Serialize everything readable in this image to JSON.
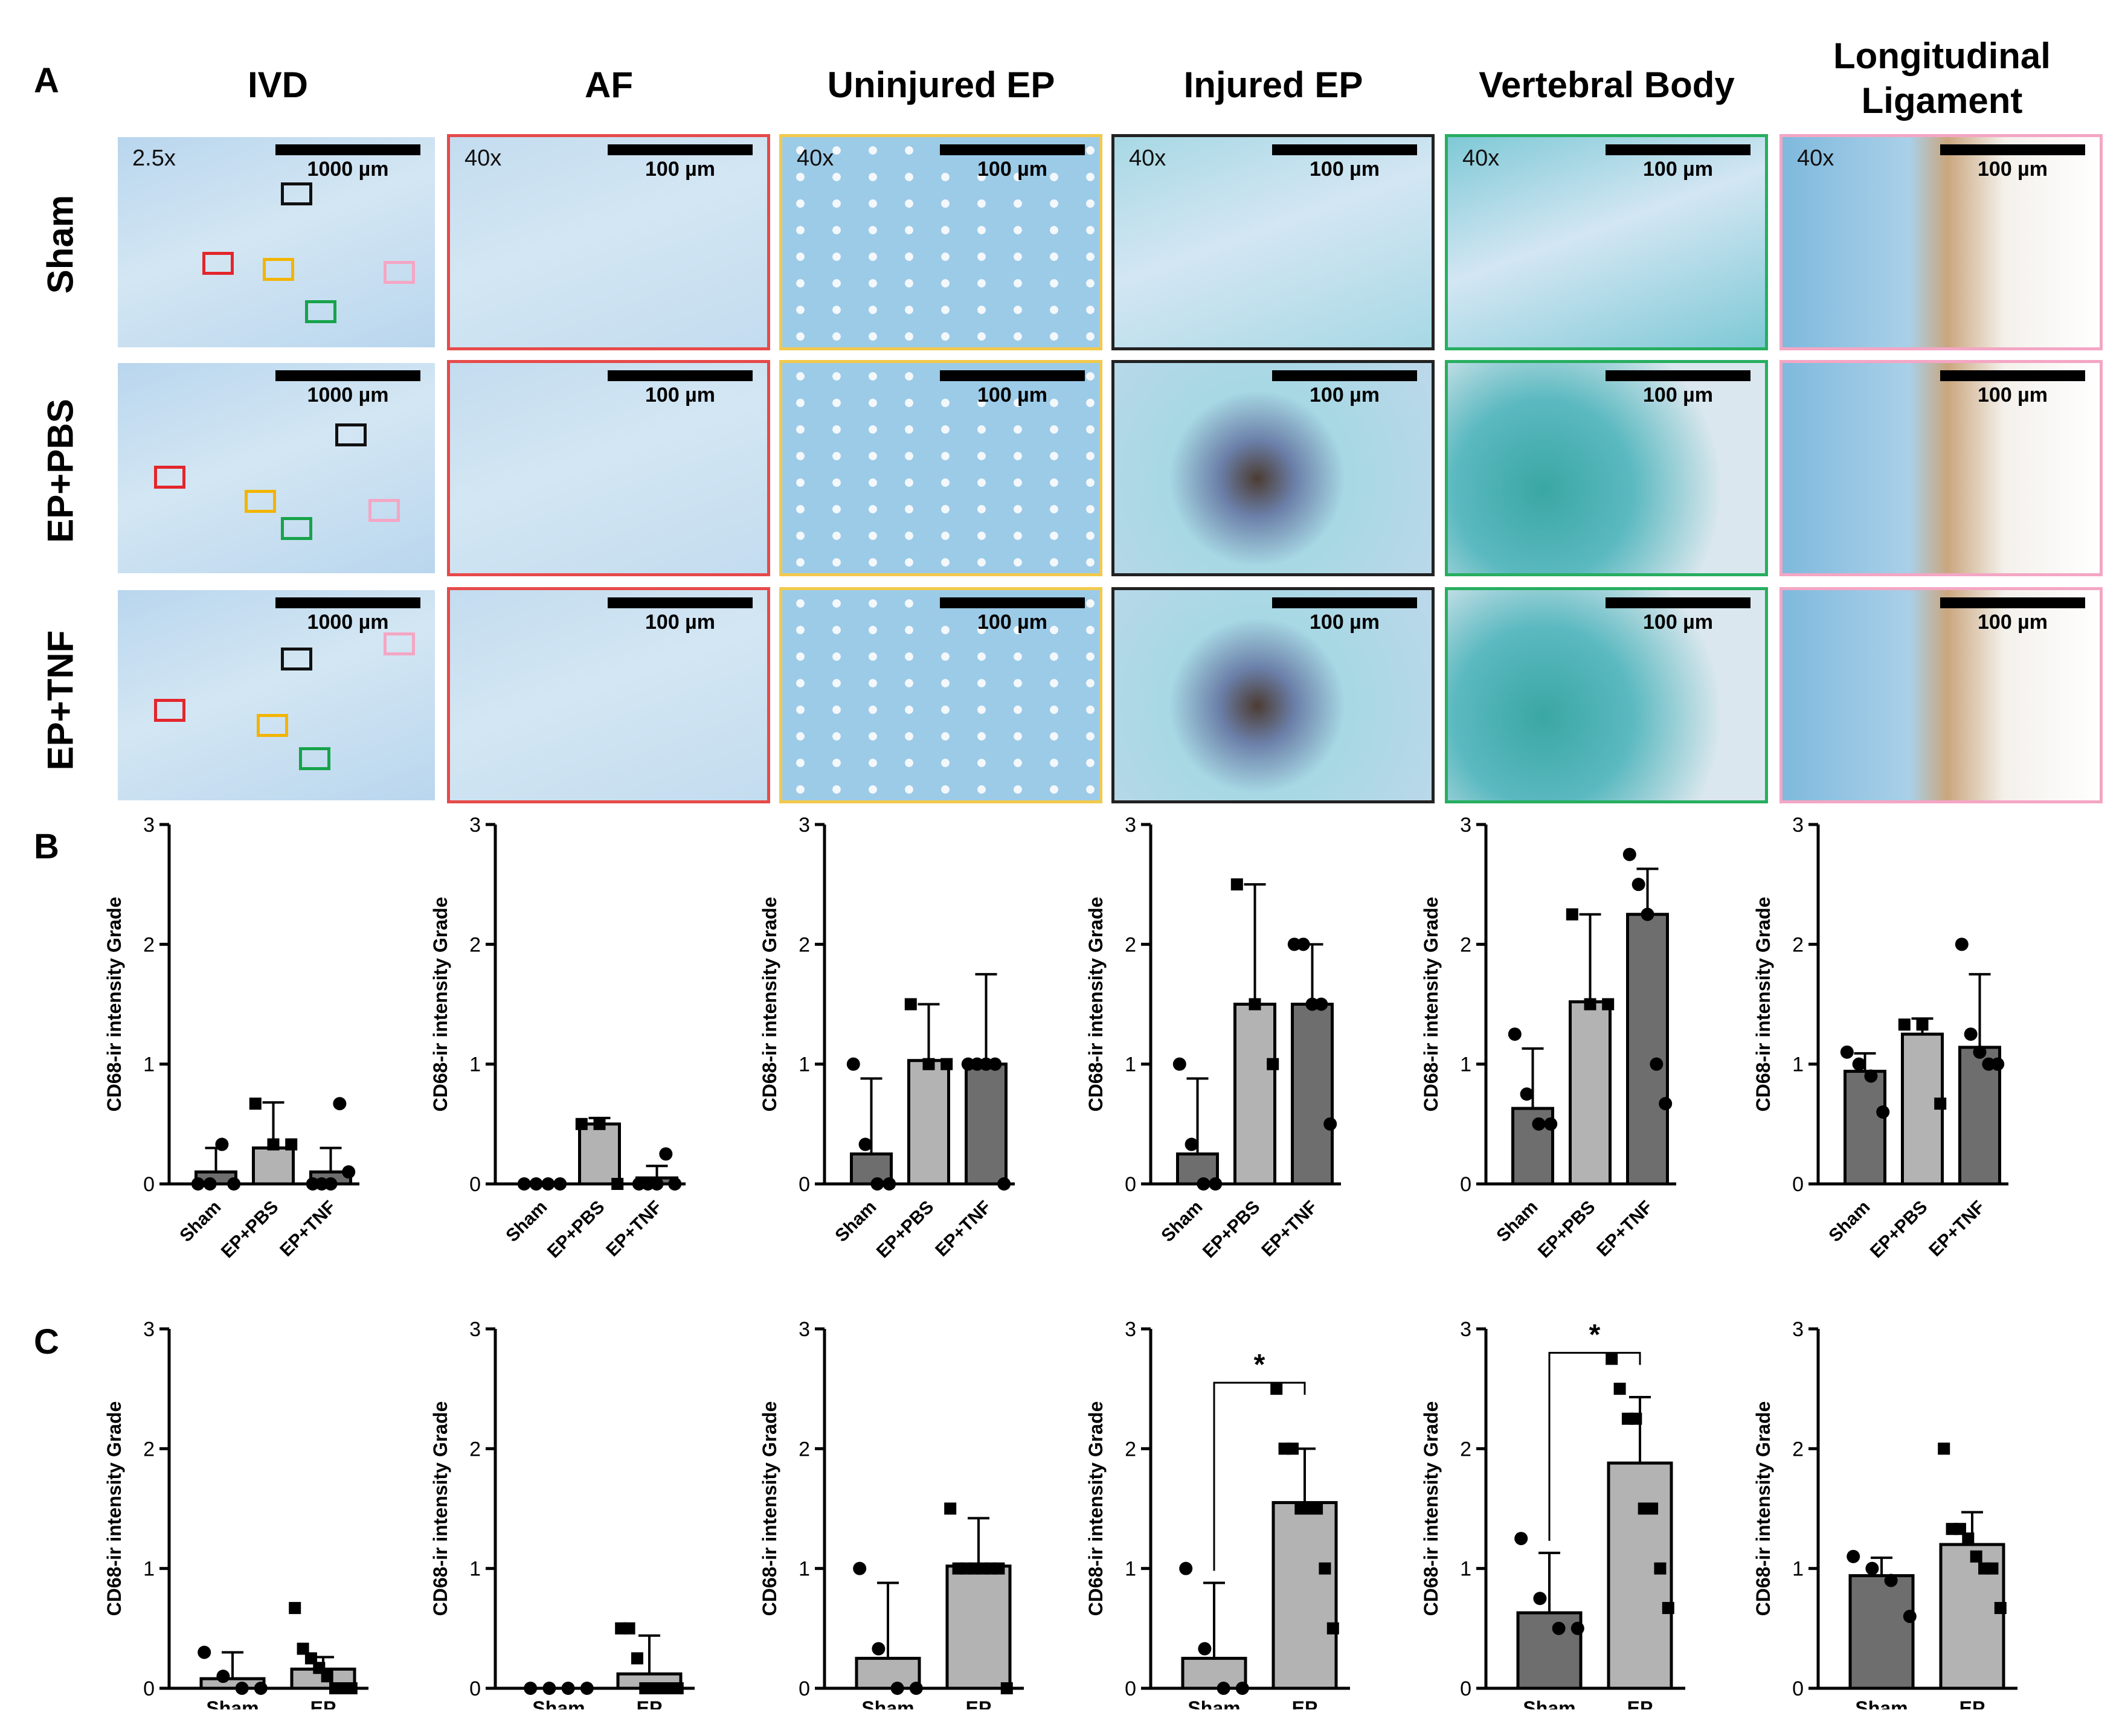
{
  "panels": {
    "a": "A",
    "b": "B",
    "c": "C"
  },
  "columns": [
    {
      "label": "IVD",
      "border": "#ffffff",
      "mag": "2.5x",
      "scale": "1000 µm"
    },
    {
      "label": "AF",
      "border": "#e64a4a",
      "mag": "40x",
      "scale": "100 µm"
    },
    {
      "label": "Uninjured EP",
      "border": "#f2c94c",
      "mag": "40x",
      "scale": "100 µm"
    },
    {
      "label": "Injured EP",
      "border": "#222222",
      "mag": "40x",
      "scale": "100 µm"
    },
    {
      "label": "Vertebral Body",
      "border": "#27ae60",
      "mag": "40x",
      "scale": "100 µm"
    },
    {
      "label": "Longitudinal Ligament",
      "border": "#f4a6c4",
      "mag": "40x",
      "scale": "100 µm"
    }
  ],
  "rows": [
    "Sham",
    "EP+PBS",
    "EP+TNF"
  ],
  "roi_colors": {
    "black": "#111111",
    "red": "#e3262b",
    "yellow": "#f2b400",
    "green": "#16a34a",
    "pink": "#f4a6c4"
  },
  "tissue_colors": [
    "#b9d6ee",
    "#c3dcef",
    "#9ccbe8",
    "#a7d8e4",
    "#7fc9d6",
    "#d7e6f1"
  ],
  "chart_data": [
    {
      "type": "bar",
      "panel": "B",
      "region": "IVD",
      "ylabel": "CD68-ir intensity Grade",
      "ylim": [
        0,
        3
      ],
      "yticks": [
        0,
        1,
        2,
        3
      ],
      "categories": [
        "Sham",
        "EP+PBS",
        "EP+TNF"
      ],
      "values": [
        0.1,
        0.3,
        0.1
      ],
      "errors": [
        0.2,
        0.38,
        0.2
      ],
      "points": [
        [
          0,
          0,
          0.33,
          0
        ],
        [
          0.67,
          0.33,
          0.33
        ],
        [
          0,
          0,
          0,
          0.67,
          0.1
        ]
      ],
      "markers": [
        "circle",
        "square",
        "circle"
      ]
    },
    {
      "type": "bar",
      "panel": "B",
      "region": "AF",
      "ylabel": "CD68-ir intensity Grade",
      "ylim": [
        0,
        3
      ],
      "yticks": [
        0,
        1,
        2,
        3
      ],
      "categories": [
        "Sham",
        "EP+PBS",
        "EP+TNF"
      ],
      "values": [
        0,
        0.5,
        0.05
      ],
      "errors": [
        0,
        0.05,
        0.1
      ],
      "points": [
        [
          0,
          0,
          0,
          0
        ],
        [
          0.5,
          0.5,
          0
        ],
        [
          0,
          0,
          0,
          0.25,
          0
        ]
      ],
      "markers": [
        "circle",
        "square",
        "circle"
      ]
    },
    {
      "type": "bar",
      "panel": "B",
      "region": "Uninjured EP",
      "ylabel": "CD68-ir intensity Grade",
      "ylim": [
        0,
        3
      ],
      "yticks": [
        0,
        1,
        2,
        3
      ],
      "categories": [
        "Sham",
        "EP+PBS",
        "EP+TNF"
      ],
      "values": [
        0.25,
        1.03,
        1.0
      ],
      "errors": [
        0.63,
        0.47,
        0.75
      ],
      "points": [
        [
          1,
          0.33,
          0,
          0
        ],
        [
          1.5,
          1,
          1
        ],
        [
          1,
          1,
          1,
          1,
          0
        ]
      ],
      "markers": [
        "circle",
        "square",
        "circle"
      ]
    },
    {
      "type": "bar",
      "panel": "B",
      "region": "Injured EP",
      "ylabel": "CD68-ir intensity Grade",
      "ylim": [
        0,
        3
      ],
      "yticks": [
        0,
        1,
        2,
        3
      ],
      "categories": [
        "Sham",
        "EP+PBS",
        "EP+TNF"
      ],
      "values": [
        0.25,
        1.5,
        1.5
      ],
      "errors": [
        0.63,
        1.0,
        0.5
      ],
      "points": [
        [
          1,
          0.33,
          0,
          0
        ],
        [
          2.5,
          1.5,
          1
        ],
        [
          2,
          2,
          1.5,
          1.5,
          0.5
        ]
      ],
      "markers": [
        "circle",
        "square",
        "circle"
      ]
    },
    {
      "type": "bar",
      "panel": "B",
      "region": "Vertebral Body",
      "ylabel": "CD68-ir intensity Grade",
      "ylim": [
        0,
        3
      ],
      "yticks": [
        0,
        1,
        2,
        3
      ],
      "categories": [
        "Sham",
        "EP+PBS",
        "EP+TNF"
      ],
      "values": [
        0.63,
        1.52,
        2.25
      ],
      "errors": [
        0.5,
        0.73,
        0.38
      ],
      "points": [
        [
          1.25,
          0.75,
          0.5,
          0.5
        ],
        [
          2.25,
          1.5,
          1.5
        ],
        [
          2.75,
          2.5,
          2.25,
          1,
          0.67
        ]
      ],
      "markers": [
        "circle",
        "square",
        "circle"
      ]
    },
    {
      "type": "bar",
      "panel": "B",
      "region": "Longitudinal Ligament",
      "ylabel": "CD68-ir intensity Grade",
      "ylim": [
        0,
        3
      ],
      "yticks": [
        0,
        1,
        2,
        3
      ],
      "categories": [
        "Sham",
        "EP+PBS",
        "EP+TNF"
      ],
      "values": [
        0.94,
        1.25,
        1.14
      ],
      "errors": [
        0.15,
        0.13,
        0.61
      ],
      "points": [
        [
          1.1,
          1,
          0.9,
          0.6
        ],
        [
          1.33,
          1.33,
          0.67
        ],
        [
          2,
          1.25,
          1.1,
          1,
          1
        ]
      ],
      "markers": [
        "circle",
        "square",
        "circle"
      ]
    },
    {
      "type": "bar",
      "panel": "C",
      "region": "IVD",
      "ylabel": "CD68-ir intensity Grade",
      "ylim": [
        0,
        3
      ],
      "yticks": [
        0,
        1,
        2,
        3
      ],
      "categories": [
        "Sham",
        "EP"
      ],
      "values": [
        0.08,
        0.16
      ],
      "errors": [
        0.22,
        0.1
      ],
      "points": [
        [
          0.3,
          0.1,
          0,
          0
        ],
        [
          0.67,
          0.33,
          0.25,
          0.17,
          0.1,
          0,
          0,
          0
        ]
      ],
      "markers": [
        "circle",
        "square"
      ]
    },
    {
      "type": "bar",
      "panel": "C",
      "region": "AF",
      "ylabel": "CD68-ir intensity Grade",
      "ylim": [
        0,
        3
      ],
      "yticks": [
        0,
        1,
        2,
        3
      ],
      "categories": [
        "Sham",
        "EP"
      ],
      "values": [
        0,
        0.12
      ],
      "errors": [
        0,
        0.32
      ],
      "points": [
        [
          0,
          0,
          0,
          0
        ],
        [
          0.5,
          0.5,
          0.25,
          0,
          0,
          0,
          0,
          0
        ]
      ],
      "markers": [
        "circle",
        "square"
      ]
    },
    {
      "type": "bar",
      "panel": "C",
      "region": "Uninjured EP",
      "ylabel": "CD68-ir intensity Grade",
      "ylim": [
        0,
        3
      ],
      "yticks": [
        0,
        1,
        2,
        3
      ],
      "categories": [
        "Sham",
        "EP"
      ],
      "values": [
        0.25,
        1.02
      ],
      "errors": [
        0.63,
        0.4
      ],
      "points": [
        [
          1,
          0.33,
          0,
          0
        ],
        [
          1.5,
          1,
          1,
          1,
          1,
          1,
          1,
          0
        ]
      ],
      "markers": [
        "circle",
        "square"
      ]
    },
    {
      "type": "bar",
      "panel": "C",
      "region": "Injured EP",
      "ylabel": "CD68-ir intensity Grade",
      "ylim": [
        0,
        3
      ],
      "yticks": [
        0,
        1,
        2,
        3
      ],
      "categories": [
        "Sham",
        "EP"
      ],
      "values": [
        0.25,
        1.55
      ],
      "errors": [
        0.63,
        0.45
      ],
      "points": [
        [
          1,
          0.33,
          0,
          0
        ],
        [
          2.5,
          2,
          2,
          1.5,
          1.5,
          1.5,
          1,
          0.5
        ]
      ],
      "markers": [
        "circle",
        "square"
      ],
      "significance": "*"
    },
    {
      "type": "bar",
      "panel": "C",
      "region": "Vertebral Body",
      "ylabel": "CD68-ir intensity Grade",
      "ylim": [
        0,
        3
      ],
      "yticks": [
        0,
        1,
        2,
        3
      ],
      "categories": [
        "Sham",
        "EP"
      ],
      "values": [
        0.63,
        1.88
      ],
      "errors": [
        0.5,
        0.55
      ],
      "points": [
        [
          1.25,
          0.75,
          0.5,
          0.5
        ],
        [
          2.75,
          2.5,
          2.25,
          2.25,
          1.5,
          1.5,
          1,
          0.67
        ]
      ],
      "markers": [
        "circle",
        "square"
      ],
      "significance": "*"
    },
    {
      "type": "bar",
      "panel": "C",
      "region": "Longitudinal Ligament",
      "ylabel": "CD68-ir intensity Grade",
      "ylim": [
        0,
        3
      ],
      "yticks": [
        0,
        1,
        2,
        3
      ],
      "categories": [
        "Sham",
        "EP"
      ],
      "values": [
        0.94,
        1.2
      ],
      "errors": [
        0.15,
        0.27
      ],
      "points": [
        [
          1.1,
          1,
          0.9,
          0.6
        ],
        [
          2,
          1.33,
          1.33,
          1.25,
          1.1,
          1,
          1,
          0.67
        ]
      ],
      "markers": [
        "circle",
        "square"
      ]
    }
  ],
  "bar_colors": {
    "sham": "#6e6e6e",
    "pbs": "#b3b3b3",
    "tnf": "#6e6e6e",
    "ep": "#b3b3b3"
  }
}
